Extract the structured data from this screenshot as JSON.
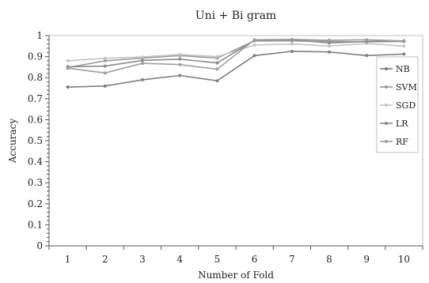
{
  "chart_data": {
    "type": "line",
    "title": "Uni + Bi gram",
    "xlabel": "Number of Fold",
    "ylabel": "Accuracy",
    "x": [
      1,
      2,
      3,
      4,
      5,
      6,
      7,
      8,
      9,
      10
    ],
    "ylim": [
      0,
      1
    ],
    "yticks": [
      "0",
      "0.1",
      "0.2",
      "0.3",
      "0.4",
      "0.5",
      "0.6",
      "0.7",
      "0.8",
      "0.9",
      "1"
    ],
    "grid": false,
    "legend": "right",
    "series": [
      {
        "name": "NB",
        "color": "#7f7f7f",
        "values": [
          0.755,
          0.76,
          0.79,
          0.81,
          0.785,
          0.905,
          0.925,
          0.922,
          0.905,
          0.912
        ]
      },
      {
        "name": "SVM",
        "color": "#9a9a9a",
        "values": [
          0.848,
          0.88,
          0.893,
          0.905,
          0.893,
          0.975,
          0.975,
          0.972,
          0.97,
          0.972
        ]
      },
      {
        "name": "SGD",
        "color": "#c4c4c4",
        "values": [
          0.88,
          0.892,
          0.898,
          0.91,
          0.9,
          0.955,
          0.96,
          0.95,
          0.962,
          0.95
        ]
      },
      {
        "name": "LR",
        "color": "#8a8a8a",
        "values": [
          0.852,
          0.855,
          0.882,
          0.888,
          0.87,
          0.978,
          0.98,
          0.965,
          0.972,
          0.975
        ]
      },
      {
        "name": "RF",
        "color": "#9e9e9e",
        "values": [
          0.845,
          0.822,
          0.868,
          0.862,
          0.84,
          0.98,
          0.982,
          0.978,
          0.98,
          0.975
        ]
      }
    ]
  }
}
